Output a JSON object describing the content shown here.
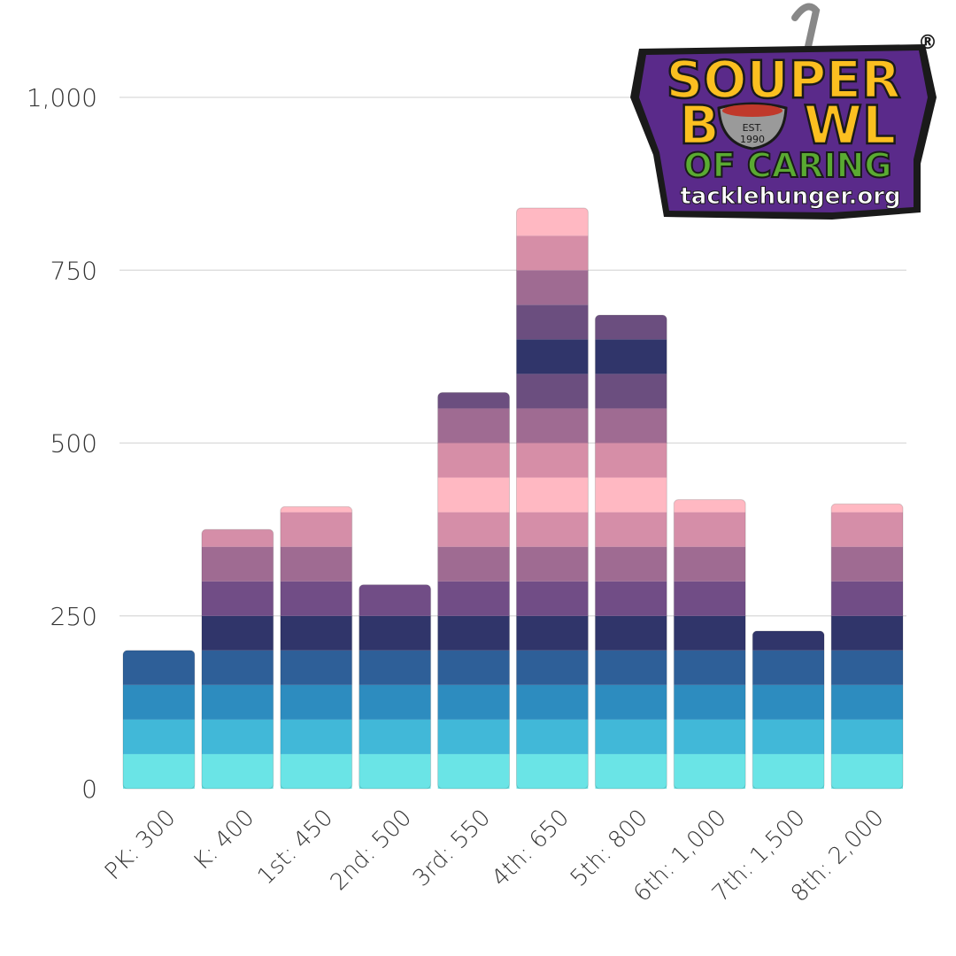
{
  "colors": {
    "band_palette": [
      "#6ae4e6",
      "#41b8d8",
      "#2d8cbf",
      "#2e5f98",
      "#30356a",
      "#714d86",
      "#9f6b92",
      "#d58ea8",
      "#ffb8c2",
      "#d68ea7",
      "#9f6b92",
      "#6b4e7f",
      "#30356a",
      "#6b4e7f",
      "#9f6b92",
      "#d68ea7",
      "#ffb8c2"
    ],
    "logo_purple": "#5a2a8a",
    "logo_yellow": "#fbbf20",
    "logo_green": "#5aaa32"
  },
  "logo": {
    "line1": "SOUPER",
    "line2_left": "B",
    "line2_right": "WL",
    "line3": "OF CARING",
    "url": "tacklehunger.org",
    "est_line1": "EST.",
    "est_line2": "1990",
    "reg_mark": "®"
  },
  "chart_data": {
    "type": "bar",
    "stacked_bands": true,
    "band_size": 50,
    "categories": [
      "PK: 300",
      "K: 400",
      "1st: 450",
      "2nd: 500",
      "3rd: 550",
      "4th: 650",
      "5th: 800",
      "6th: 1,000",
      "7th: 1,500",
      "8th: 2,000"
    ],
    "values": [
      200,
      375,
      408,
      295,
      573,
      840,
      685,
      418,
      228,
      412
    ],
    "ylim": [
      0,
      1000
    ],
    "yticks": [
      0,
      250,
      500,
      750,
      1000
    ],
    "ytick_labels": [
      "0",
      "250",
      "500",
      "750",
      "1,000"
    ],
    "title": "",
    "xlabel": "",
    "ylabel": "",
    "grid": true
  }
}
